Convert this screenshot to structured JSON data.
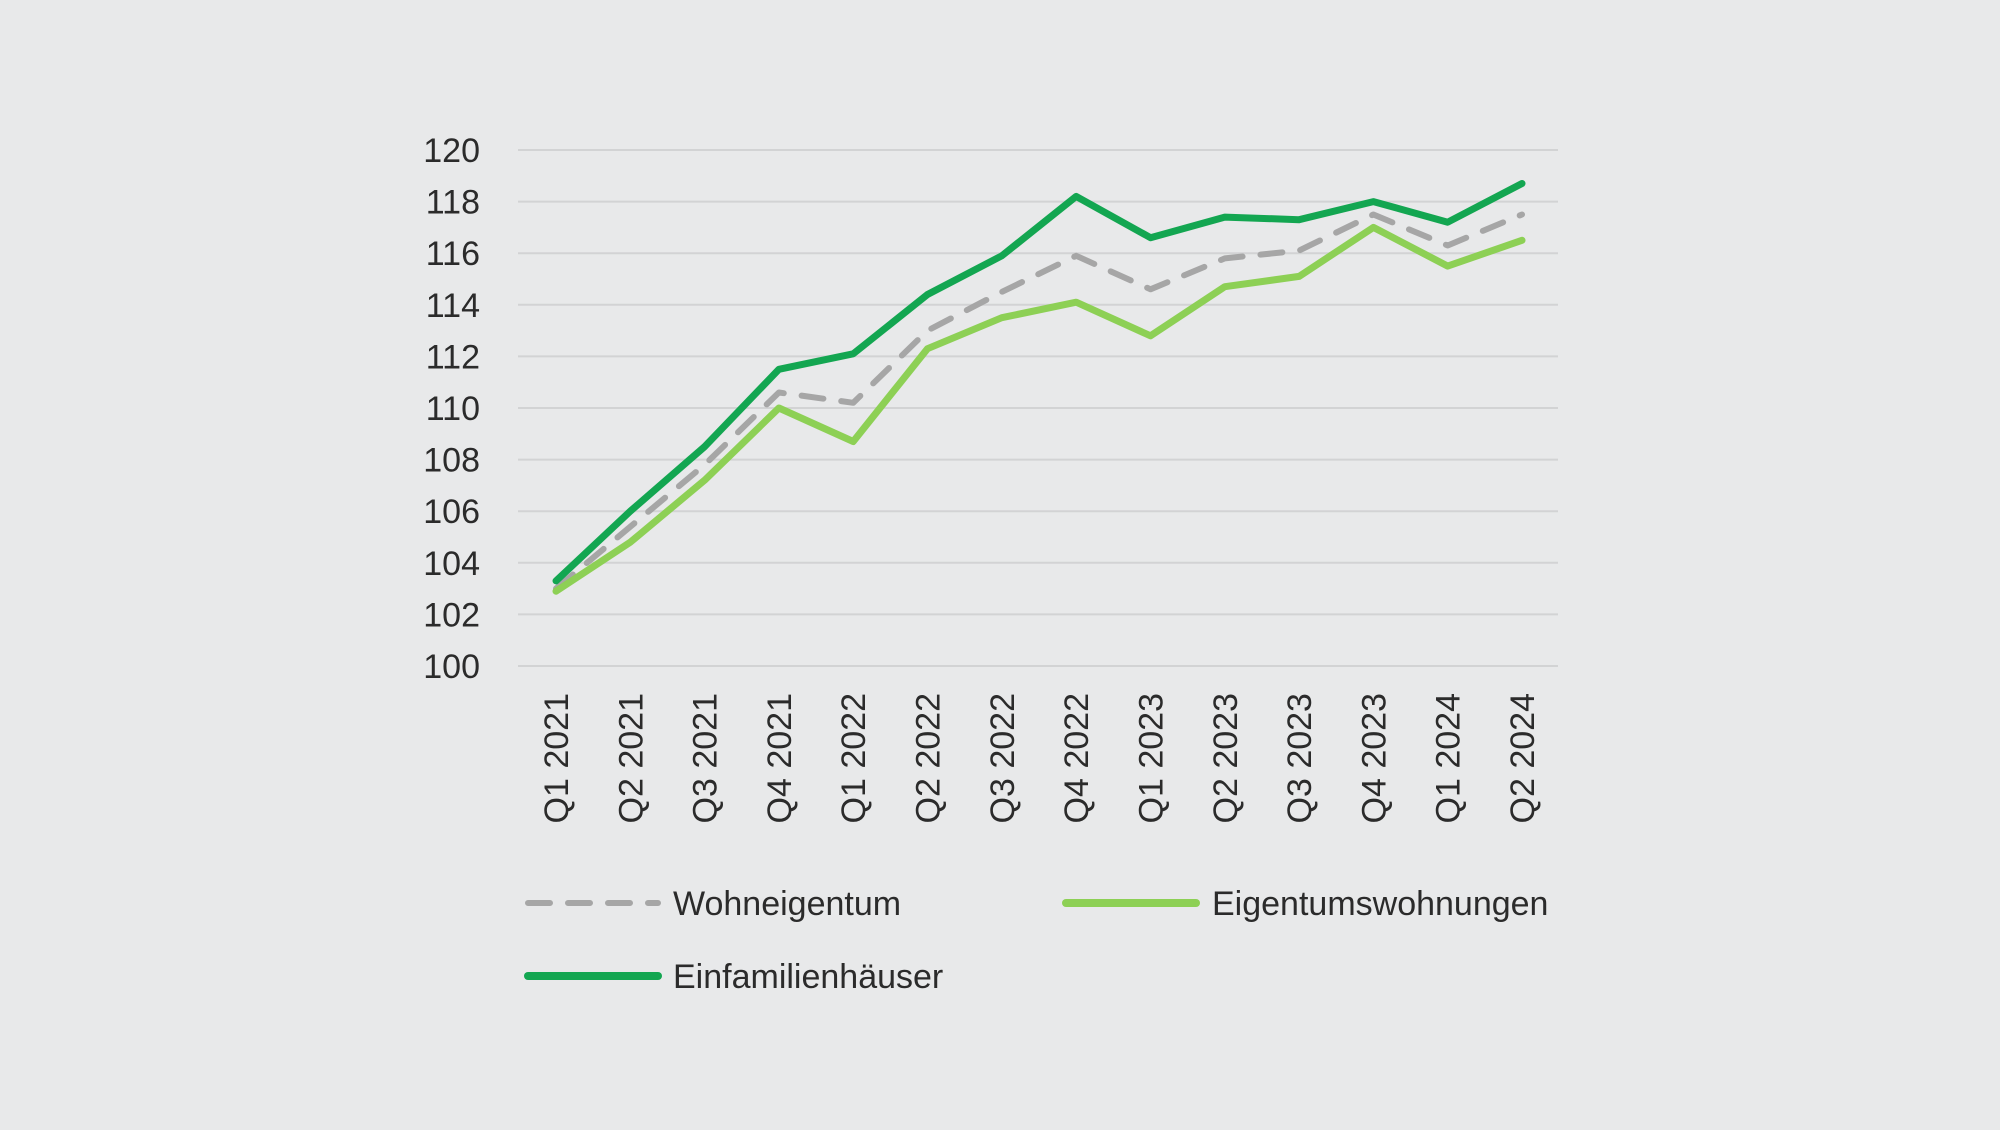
{
  "chart_data": {
    "type": "line",
    "categories": [
      "Q1 2021",
      "Q2 2021",
      "Q3 2021",
      "Q4 2021",
      "Q1 2022",
      "Q2 2022",
      "Q3 2022",
      "Q4 2022",
      "Q1 2023",
      "Q2 2023",
      "Q3 2023",
      "Q4 2023",
      "Q1 2024",
      "Q2 2024"
    ],
    "ylim": [
      100,
      120
    ],
    "yticks": [
      "100",
      "102",
      "104",
      "106",
      "108",
      "110",
      "112",
      "114",
      "116",
      "118",
      "120"
    ],
    "grid": true,
    "legend_position": "bottom",
    "series": [
      {
        "name": "Wohneigentum",
        "color": "#a6a6a6",
        "dashed": true,
        "values": [
          103.0,
          105.4,
          107.8,
          110.6,
          110.2,
          113.0,
          114.5,
          115.9,
          114.6,
          115.8,
          116.1,
          117.5,
          116.3,
          117.5
        ]
      },
      {
        "name": "Eigentumswohnungen",
        "color": "#8dd055",
        "dashed": false,
        "values": [
          102.9,
          104.8,
          107.2,
          110.0,
          108.7,
          112.3,
          113.5,
          114.1,
          112.8,
          114.7,
          115.1,
          117.0,
          115.5,
          116.5
        ]
      },
      {
        "name": "Einfamilienhäuser",
        "color": "#13a651",
        "dashed": false,
        "values": [
          103.3,
          106.0,
          108.5,
          111.5,
          112.1,
          114.4,
          115.9,
          118.2,
          116.6,
          117.4,
          117.3,
          118.0,
          117.2,
          118.7
        ]
      }
    ]
  }
}
